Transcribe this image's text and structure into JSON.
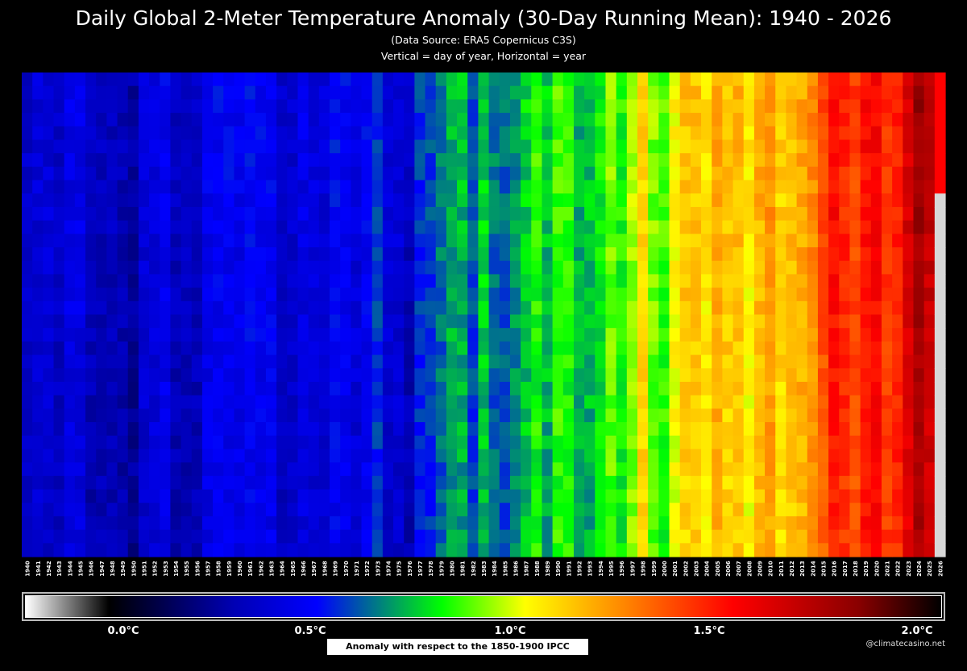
{
  "chart_data": {
    "type": "heatmap",
    "title": "Daily Global 2-Meter Temperature Anomaly (30-Day Running Mean): 1940 - 2026",
    "subtitle_source": "(Data Source: ERA5 Copernicus C3S)",
    "subtitle_axes": "Vertical = day of year, Horizontal = year",
    "x_years": [
      "1940",
      "1941",
      "1942",
      "1943",
      "1944",
      "1945",
      "1946",
      "1947",
      "1948",
      "1949",
      "1950",
      "1951",
      "1952",
      "1953",
      "1954",
      "1955",
      "1956",
      "1957",
      "1958",
      "1959",
      "1960",
      "1961",
      "1962",
      "1963",
      "1964",
      "1965",
      "1966",
      "1967",
      "1968",
      "1969",
      "1970",
      "1971",
      "1972",
      "1973",
      "1974",
      "1975",
      "1976",
      "1977",
      "1978",
      "1979",
      "1980",
      "1981",
      "1982",
      "1983",
      "1984",
      "1985",
      "1986",
      "1987",
      "1988",
      "1989",
      "1990",
      "1991",
      "1992",
      "1993",
      "1994",
      "1995",
      "1996",
      "1997",
      "1998",
      "1999",
      "2000",
      "2001",
      "2002",
      "2003",
      "2004",
      "2005",
      "2006",
      "2007",
      "2008",
      "2009",
      "2010",
      "2011",
      "2012",
      "2013",
      "2014",
      "2015",
      "2016",
      "2017",
      "2018",
      "2019",
      "2020",
      "2021",
      "2022",
      "2023",
      "2024",
      "2025",
      "2026"
    ],
    "annual_mean_anomaly_c": [
      0.36,
      0.4,
      0.4,
      0.36,
      0.44,
      0.44,
      0.34,
      0.34,
      0.34,
      0.32,
      0.28,
      0.4,
      0.42,
      0.46,
      0.34,
      0.34,
      0.34,
      0.46,
      0.48,
      0.48,
      0.46,
      0.5,
      0.48,
      0.48,
      0.36,
      0.38,
      0.44,
      0.42,
      0.4,
      0.5,
      0.48,
      0.42,
      0.48,
      0.58,
      0.4,
      0.4,
      0.34,
      0.56,
      0.58,
      0.64,
      0.72,
      0.72,
      0.6,
      0.76,
      0.64,
      0.62,
      0.68,
      0.76,
      0.84,
      0.74,
      0.86,
      0.84,
      0.72,
      0.74,
      0.8,
      0.9,
      0.82,
      0.94,
      1.1,
      0.9,
      0.86,
      1.02,
      1.12,
      1.12,
      1.06,
      1.18,
      1.12,
      1.14,
      1.04,
      1.16,
      1.22,
      1.1,
      1.14,
      1.18,
      1.24,
      1.36,
      1.5,
      1.44,
      1.38,
      1.5,
      1.52,
      1.42,
      1.46,
      1.62,
      1.76,
      1.66,
      1.64
    ],
    "final_year_partial": true,
    "colorbar": {
      "labels": [
        "0.0°C",
        "0.5°C",
        "1.0°C",
        "1.5°C",
        "2.0°C"
      ],
      "range": [
        -0.2,
        2.0
      ],
      "stops": [
        {
          "v": -0.2,
          "c": "#ffffff"
        },
        {
          "v": 0.0,
          "c": "#000000"
        },
        {
          "v": 0.3,
          "c": "#0000b4"
        },
        {
          "v": 0.5,
          "c": "#0000ff"
        },
        {
          "v": 0.8,
          "c": "#00ff00"
        },
        {
          "v": 1.0,
          "c": "#ffff00"
        },
        {
          "v": 1.2,
          "c": "#ff9900"
        },
        {
          "v": 1.5,
          "c": "#ff0000"
        },
        {
          "v": 1.8,
          "c": "#8a0000"
        },
        {
          "v": 2.0,
          "c": "#000000"
        }
      ]
    },
    "baseline_label": "Anomaly with respect to the 1850-1900 IPCC Baseline"
  },
  "credit": "@climatecasino.net"
}
